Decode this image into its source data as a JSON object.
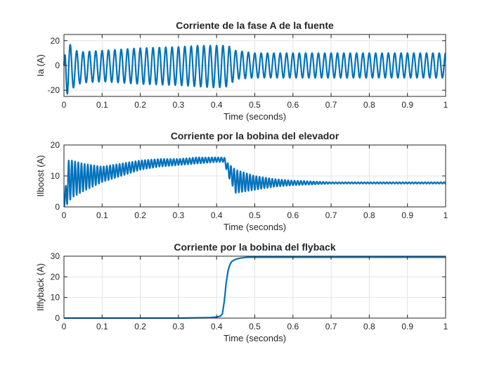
{
  "chart_data": [
    {
      "type": "line",
      "title": "Corriente de la fase A de la fuente",
      "xlabel": "Time (seconds)",
      "ylabel": "Ia (A)",
      "xlim": [
        0,
        1
      ],
      "ylim": [
        -25,
        25
      ],
      "xticks": [
        0,
        0.1,
        0.2,
        0.3,
        0.4,
        0.5,
        0.6,
        0.7,
        0.8,
        0.9,
        1
      ],
      "xtick_labels": [
        "0",
        "0.1",
        "0.2",
        "0.3",
        "0.4",
        "0.5",
        "0.6",
        "0.7",
        "0.8",
        "0.9",
        "1"
      ],
      "yticks": [
        -20,
        0,
        20
      ],
      "ytick_labels": [
        "-20",
        "0",
        "20"
      ],
      "grid": true,
      "color": "#0072BD",
      "series": [
        {
          "x": [
            0,
            0.005,
            0.01,
            0.015,
            0.02,
            0.03,
            0.05,
            0.1,
            0.2,
            0.3,
            0.35,
            0.4,
            0.43,
            0.45,
            0.5,
            0.6,
            0.7,
            0.8,
            0.9,
            1.0
          ],
          "y_upper": [
            0,
            26,
            24,
            18,
            14,
            12,
            11,
            12,
            14,
            15,
            16,
            16,
            16,
            12,
            10,
            10,
            10,
            10,
            10,
            10
          ],
          "y_lower": [
            0,
            -18,
            -25,
            -23,
            -20,
            -16,
            -14,
            -13,
            -15,
            -16,
            -17,
            -18,
            -17,
            -11,
            -10,
            -10,
            -10,
            -10,
            -10,
            -10
          ],
          "frequency_hz": 60
        }
      ]
    },
    {
      "type": "line",
      "title": "Corriente por la bobina del elevador",
      "xlabel": "Time (seconds)",
      "ylabel": "Ilboost (A)",
      "xlim": [
        0,
        1
      ],
      "ylim": [
        0,
        20
      ],
      "xticks": [
        0,
        0.1,
        0.2,
        0.3,
        0.4,
        0.5,
        0.6,
        0.7,
        0.8,
        0.9,
        1
      ],
      "xtick_labels": [
        "0",
        "0.1",
        "0.2",
        "0.3",
        "0.4",
        "0.5",
        "0.6",
        "0.7",
        "0.8",
        "0.9",
        "1"
      ],
      "yticks": [
        0,
        10,
        20
      ],
      "ytick_labels": [
        "0",
        "10",
        "20"
      ],
      "grid": true,
      "color": "#0072BD",
      "series": [
        {
          "x": [
            0,
            0.01,
            0.02,
            0.05,
            0.1,
            0.15,
            0.2,
            0.25,
            0.3,
            0.35,
            0.4,
            0.42,
            0.43,
            0.45,
            0.5,
            0.55,
            0.6,
            0.7,
            0.8,
            0.9,
            1.0
          ],
          "y_upper": [
            0,
            15,
            15,
            14,
            13,
            14,
            15,
            15.5,
            15.5,
            16,
            16,
            16,
            14,
            12,
            10,
            9,
            8.5,
            8,
            8,
            8,
            8
          ],
          "y_lower": [
            0,
            1,
            3,
            5,
            8,
            10,
            12,
            13,
            13.5,
            14,
            14.5,
            14.5,
            10,
            4.5,
            5.5,
            6.5,
            7,
            7.5,
            7.5,
            7.5,
            7.5
          ],
          "frequency_hz": 120
        }
      ]
    },
    {
      "type": "line",
      "title": "Corriente por la bobina del flyback",
      "xlabel": "Time (seconds)",
      "ylabel": "Ilflyback (A)",
      "xlim": [
        0,
        1
      ],
      "ylim": [
        0,
        30
      ],
      "xticks": [
        0,
        0.1,
        0.2,
        0.3,
        0.4,
        0.5,
        0.6,
        0.7,
        0.8,
        0.9,
        1
      ],
      "xtick_labels": [
        "0",
        "0.1",
        "0.2",
        "0.3",
        "0.4",
        "0.5",
        "0.6",
        "0.7",
        "0.8",
        "0.9",
        "1"
      ],
      "yticks": [
        0,
        10,
        20,
        30
      ],
      "ytick_labels": [
        "0",
        "10",
        "20",
        "30"
      ],
      "grid": true,
      "color": "#0072BD",
      "series": [
        {
          "x": [
            0,
            0.3,
            0.38,
            0.4,
            0.41,
            0.415,
            0.42,
            0.425,
            0.43,
            0.435,
            0.44,
            0.45,
            0.46,
            0.48,
            0.5,
            0.6,
            0.7,
            0.8,
            0.9,
            1.0
          ],
          "y": [
            0,
            0,
            0.2,
            0.5,
            1,
            2,
            8,
            17,
            23,
            26,
            27.5,
            28.5,
            29,
            29.5,
            29.5,
            29.5,
            29.5,
            29.5,
            29.5,
            29.5
          ]
        }
      ]
    }
  ]
}
